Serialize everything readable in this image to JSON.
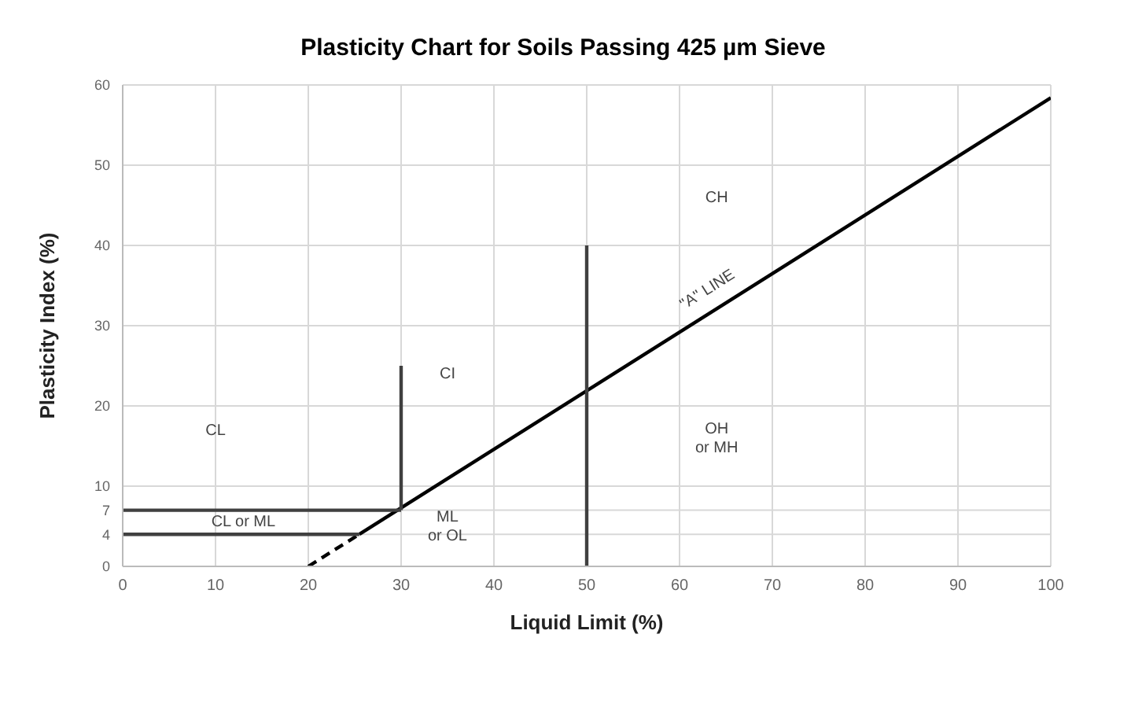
{
  "chart_data": {
    "type": "line",
    "title": "Plasticity Chart for Soils Passing 425 µm Sieve",
    "xlabel": "Liquid Limit (%)",
    "ylabel": "Plasticity Index (%)",
    "xlim": [
      0,
      100
    ],
    "xticks": [
      0,
      10,
      20,
      30,
      40,
      50,
      60,
      70,
      80,
      90,
      100
    ],
    "ylim": [
      0,
      60
    ],
    "yticks": [
      0,
      4,
      7,
      10,
      20,
      30,
      40,
      50,
      60
    ],
    "grid": true,
    "marker": "none",
    "series": [
      {
        "x": [
          25.5,
          100
        ],
        "values": [
          4,
          58.4
        ],
        "color": "#000000",
        "line_style": "solid"
      },
      {
        "x": [
          20,
          25.5
        ],
        "values": [
          0,
          4
        ],
        "color": "#000000",
        "line_style": "dashed"
      },
      {
        "x": [
          0,
          30
        ],
        "values": [
          7,
          7
        ],
        "color": "#404040",
        "line_style": "solid"
      },
      {
        "x": [
          0,
          25.5
        ],
        "values": [
          4,
          4
        ],
        "color": "#404040",
        "line_style": "solid"
      },
      {
        "x": [
          30,
          30
        ],
        "values": [
          7,
          25
        ],
        "color": "#404040",
        "line_style": "solid"
      },
      {
        "x": [
          50,
          50
        ],
        "values": [
          0,
          40
        ],
        "color": "#404040",
        "line_style": "solid"
      }
    ],
    "annotations": [
      "CH",
      "CI",
      "CL",
      "CL or ML",
      "ML\nor OL",
      "OH\nor MH",
      "\"A\" LINE"
    ]
  }
}
